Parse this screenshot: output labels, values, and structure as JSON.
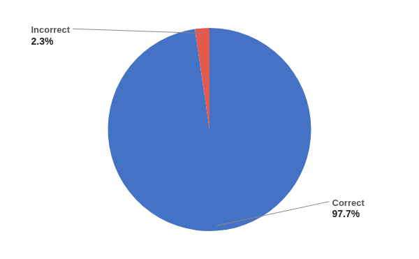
{
  "chart_data": {
    "type": "pie",
    "categories": [
      "Correct",
      "Incorrect"
    ],
    "values": [
      97.7,
      2.3
    ],
    "value_labels": [
      "97.7%",
      "2.3%"
    ],
    "colors": [
      "#4472C4",
      "#E05A4E"
    ],
    "data_labels": true
  }
}
